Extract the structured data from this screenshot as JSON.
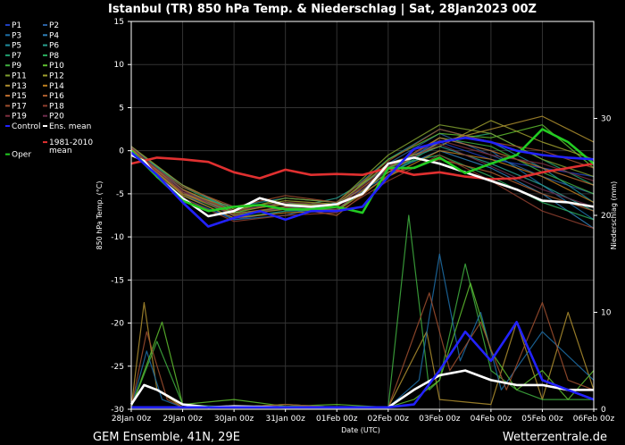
{
  "chart_data": {
    "type": "line",
    "title": "Istanbul  (TR)  850 hPa Temp. & Niederschlag | Sat, 28Jan2023 00Z",
    "xlabel": "Date (UTC)",
    "ylabel_left": "850 hPa Temp. (°C)",
    "ylabel_right": "Niederschlag (mm)",
    "footer_left": "GEM Ensemble, 41N, 29E",
    "footer_right": "Wetterzentrale.de",
    "y_left_range": [
      -30,
      15
    ],
    "y_right_range": [
      0,
      40
    ],
    "y_left_ticks": [
      "15",
      "10",
      "5",
      "0",
      "-5",
      "-10",
      "-15",
      "-20",
      "-25",
      "-30"
    ],
    "y_right_ticks": [
      "30",
      "20",
      "10",
      "0"
    ],
    "x_ticks": [
      "28Jan 00z",
      "29Jan 00z",
      "30Jan 00z",
      "31Jan 00z",
      "01Feb 00z",
      "02Feb 00z",
      "03Feb 00z",
      "04Feb 00z",
      "05Feb 00z",
      "06Feb 00z"
    ],
    "grid": true,
    "legend_position": "left",
    "legend": [
      {
        "label": "P1",
        "color": "#1f3fbf"
      },
      {
        "label": "P2",
        "color": "#2a5fa0"
      },
      {
        "label": "P3",
        "color": "#1d6fa8"
      },
      {
        "label": "P4",
        "color": "#2f7fb8"
      },
      {
        "label": "P5",
        "color": "#1f8f9f"
      },
      {
        "label": "P6",
        "color": "#2a9f8f"
      },
      {
        "label": "P7",
        "color": "#1f9f6f"
      },
      {
        "label": "P8",
        "color": "#2aaf5f"
      },
      {
        "label": "P9",
        "color": "#3faf3f"
      },
      {
        "label": "P10",
        "color": "#5fbf2f"
      },
      {
        "label": "P11",
        "color": "#7f9f2f"
      },
      {
        "label": "P12",
        "color": "#9f9f2f"
      },
      {
        "label": "P13",
        "color": "#af8f2f"
      },
      {
        "label": "P14",
        "color": "#bf7f1f"
      },
      {
        "label": "P15",
        "color": "#bf6f2f"
      },
      {
        "label": "P16",
        "color": "#af5f2f"
      },
      {
        "label": "P17",
        "color": "#9f4f2f"
      },
      {
        "label": "P18",
        "color": "#8f3f2f"
      },
      {
        "label": "P19",
        "color": "#7f2f3f"
      },
      {
        "label": "P20",
        "color": "#6f2f4f"
      },
      {
        "label": "Control",
        "color": "#2222ff"
      },
      {
        "label": "Ens. mean",
        "color": "#ffffff"
      },
      {
        "label": "1981-2010 mean",
        "color": "#e03030"
      },
      {
        "label": "Oper",
        "color": "#22cc22"
      }
    ],
    "series": [
      {
        "name": "1981-2010 mean",
        "axis": "left",
        "color": "#e03030",
        "x": [
          0,
          0.5,
          1,
          1.5,
          2,
          2.5,
          3,
          3.5,
          4,
          4.5,
          5,
          5.5,
          6,
          6.5,
          7,
          7.5,
          8,
          8.5,
          9
        ],
        "y": [
          -1.5,
          -0.8,
          -1,
          -1.3,
          -2.5,
          -3.2,
          -2.2,
          -2.8,
          -2.7,
          -2.8,
          -2,
          -2.8,
          -2.5,
          -3,
          -3.3,
          -3.2,
          -2.5,
          -2,
          -1.5
        ]
      },
      {
        "name": "Ens. mean",
        "axis": "left",
        "color": "#ffffff",
        "x": [
          0,
          0.25,
          0.5,
          1,
          1.5,
          2,
          2.5,
          3,
          3.5,
          4,
          4.5,
          5,
          5.5,
          6,
          6.5,
          7,
          7.5,
          8,
          8.5,
          9
        ],
        "y": [
          -0.5,
          -1.2,
          -3,
          -5.5,
          -7.6,
          -7,
          -5.5,
          -6.3,
          -6.5,
          -6.2,
          -5,
          -1.5,
          -0.8,
          -1.5,
          -2.5,
          -3.5,
          -4.5,
          -5.8,
          -6,
          -6.5
        ]
      },
      {
        "name": "Oper",
        "axis": "left",
        "color": "#22cc22",
        "x": [
          0,
          0.5,
          1,
          1.5,
          2,
          2.5,
          3,
          3.5,
          4,
          4.5,
          5,
          5.5,
          6,
          6.5,
          7,
          7.5,
          8,
          8.5,
          9
        ],
        "y": [
          0,
          -3,
          -5.8,
          -7,
          -6.5,
          -6.3,
          -6.8,
          -6.8,
          -6.5,
          -7.2,
          -2,
          -2,
          -0.8,
          -2.6,
          -1.5,
          -0.5,
          2.5,
          1,
          -1.5
        ]
      },
      {
        "name": "Control",
        "axis": "left",
        "color": "#2222ff",
        "x": [
          0,
          0.5,
          1,
          1.5,
          2,
          2.5,
          3,
          3.5,
          4,
          4.5,
          5,
          5.5,
          6,
          6.5,
          7,
          7.5,
          8,
          8.5,
          9
        ],
        "y": [
          -0.2,
          -2.8,
          -6,
          -8.8,
          -7.8,
          -7,
          -8,
          -7,
          -7,
          -6.5,
          -3,
          0.2,
          1,
          1.5,
          1,
          0,
          -0.5,
          -0.8,
          -1
        ]
      },
      {
        "name": "P1",
        "axis": "left",
        "color": "#1f3fbf",
        "x": [
          0,
          1,
          2,
          3,
          4,
          5,
          6,
          7,
          8,
          9
        ],
        "y": [
          0,
          -5,
          -8,
          -7,
          -7,
          -2,
          1,
          -1,
          -2,
          -3
        ]
      },
      {
        "name": "P2",
        "axis": "left",
        "color": "#2a5fa0",
        "x": [
          0,
          1,
          2,
          3,
          4,
          5,
          6,
          7,
          8,
          9
        ],
        "y": [
          0.5,
          -4.5,
          -7.5,
          -6.5,
          -6.5,
          -1.5,
          2,
          -0.5,
          -3,
          -5
        ]
      },
      {
        "name": "P3",
        "axis": "left",
        "color": "#1d6fa8",
        "x": [
          0,
          1,
          2,
          3,
          4,
          5,
          6,
          7,
          8,
          9
        ],
        "y": [
          0,
          -5.5,
          -8,
          -7.5,
          -6,
          -3,
          1.5,
          0,
          -4,
          -8
        ]
      },
      {
        "name": "P4",
        "axis": "left",
        "color": "#2f7fb8",
        "x": [
          0,
          1,
          2,
          3,
          4,
          5,
          6,
          7,
          8,
          9
        ],
        "y": [
          0.3,
          -4,
          -7,
          -6,
          -7,
          -2.5,
          0,
          -2,
          -5,
          -9
        ]
      },
      {
        "name": "P5",
        "axis": "left",
        "color": "#1f8f9f",
        "x": [
          0,
          1,
          2,
          3,
          4,
          5,
          6,
          7,
          8,
          9
        ],
        "y": [
          0,
          -5,
          -6.5,
          -5.5,
          -6,
          -1,
          2.5,
          1,
          -2,
          -6
        ]
      },
      {
        "name": "P6",
        "axis": "left",
        "color": "#2a9f8f",
        "x": [
          0,
          1,
          2,
          3,
          4,
          5,
          6,
          7,
          8,
          9
        ],
        "y": [
          0.2,
          -4.8,
          -7.2,
          -6.8,
          -5.5,
          -2,
          0.5,
          -1.5,
          -4,
          -7
        ]
      },
      {
        "name": "P7",
        "axis": "left",
        "color": "#1f9f6f",
        "x": [
          0,
          1,
          2,
          3,
          4,
          5,
          6,
          7,
          8,
          9
        ],
        "y": [
          0,
          -5.2,
          -7.8,
          -7,
          -6.8,
          -3,
          1,
          2,
          -1,
          -4
        ]
      },
      {
        "name": "P8",
        "axis": "left",
        "color": "#2aaf5f",
        "x": [
          0,
          1,
          2,
          3,
          4,
          5,
          6,
          7,
          8,
          9
        ],
        "y": [
          0.4,
          -4.2,
          -7,
          -6.2,
          -6.2,
          -1.8,
          -0.5,
          -3,
          -6,
          -8
        ]
      },
      {
        "name": "P9",
        "axis": "left",
        "color": "#3faf3f",
        "x": [
          0,
          1,
          2,
          3,
          4,
          5,
          6,
          7,
          8,
          9
        ],
        "y": [
          0,
          -5,
          -7.5,
          -6.5,
          -7,
          -2.2,
          1.5,
          0.5,
          -2.5,
          -5
        ]
      },
      {
        "name": "P10",
        "axis": "left",
        "color": "#5fbf2f",
        "x": [
          0,
          1,
          2,
          3,
          4,
          5,
          6,
          7,
          8,
          9
        ],
        "y": [
          0.1,
          -4.5,
          -7.2,
          -6,
          -6.5,
          -1,
          2,
          1.5,
          3,
          -2
        ]
      },
      {
        "name": "P11",
        "axis": "left",
        "color": "#7f9f2f",
        "x": [
          0,
          1,
          2,
          3,
          4,
          5,
          6,
          7,
          8,
          9
        ],
        "y": [
          0,
          -5,
          -7,
          -5.5,
          -6,
          -0.5,
          3,
          2,
          -1,
          -3
        ]
      },
      {
        "name": "P12",
        "axis": "left",
        "color": "#9f9f2f",
        "x": [
          0,
          1,
          2,
          3,
          4,
          5,
          6,
          7,
          8,
          9
        ],
        "y": [
          0.5,
          -4,
          -6.8,
          -5.8,
          -6.2,
          -1.5,
          0.5,
          3.5,
          1,
          -1
        ]
      },
      {
        "name": "P13",
        "axis": "left",
        "color": "#af8f2f",
        "x": [
          0,
          1,
          2,
          3,
          4,
          5,
          6,
          7,
          8,
          9
        ],
        "y": [
          0,
          -4.8,
          -7.5,
          -6.8,
          -6.8,
          -2.5,
          1,
          2.5,
          4,
          1
        ]
      },
      {
        "name": "P14",
        "axis": "left",
        "color": "#bf7f1f",
        "x": [
          0,
          1,
          2,
          3,
          4,
          5,
          6,
          7,
          8,
          9
        ],
        "y": [
          0.2,
          -5.2,
          -7.8,
          -7.2,
          -7,
          -3,
          0,
          -1,
          -3,
          -6
        ]
      },
      {
        "name": "P15",
        "axis": "left",
        "color": "#bf6f2f",
        "x": [
          0,
          1,
          2,
          3,
          4,
          5,
          6,
          7,
          8,
          9
        ],
        "y": [
          0,
          -4.5,
          -7,
          -6.2,
          -6.5,
          -2,
          1.5,
          0,
          -2,
          -4
        ]
      },
      {
        "name": "P16",
        "axis": "left",
        "color": "#af5f2f",
        "x": [
          0,
          1,
          2,
          3,
          4,
          5,
          6,
          7,
          8,
          9
        ],
        "y": [
          0.3,
          -5,
          -7.3,
          -6.5,
          -7.5,
          -2.8,
          -1,
          -2.5,
          -5,
          -7
        ]
      },
      {
        "name": "P17",
        "axis": "left",
        "color": "#9f4f2f",
        "x": [
          0,
          1,
          2,
          3,
          4,
          5,
          6,
          7,
          8,
          9
        ],
        "y": [
          0,
          -4.2,
          -6.5,
          -5.2,
          -6,
          -1.2,
          2.5,
          1,
          0,
          -2
        ]
      },
      {
        "name": "P18",
        "axis": "left",
        "color": "#8f3f2f",
        "x": [
          0,
          1,
          2,
          3,
          4,
          5,
          6,
          7,
          8,
          9
        ],
        "y": [
          0.1,
          -5.5,
          -8.2,
          -7.5,
          -7.2,
          -3.5,
          -0.5,
          -3.5,
          -7,
          -9
        ]
      },
      {
        "name": "P19",
        "axis": "left",
        "color": "#7f2f3f",
        "x": [
          0,
          1,
          2,
          3,
          4,
          5,
          6,
          7,
          8,
          9
        ],
        "y": [
          0,
          -4.8,
          -7,
          -6,
          -6.3,
          -1.8,
          1.2,
          -0.5,
          -1.5,
          -3.5
        ]
      },
      {
        "name": "P20",
        "axis": "left",
        "color": "#6f2f4f",
        "x": [
          0,
          1,
          2,
          3,
          4,
          5,
          6,
          7,
          8,
          9
        ],
        "y": [
          0.4,
          -4.6,
          -7.6,
          -6.6,
          -6.8,
          -2.2,
          0.8,
          -1.8,
          -4.5,
          -6.5
        ]
      },
      {
        "name": "Ens. mean",
        "axis": "right",
        "color": "#ffffff",
        "x": [
          0,
          0.25,
          0.5,
          1,
          1.5,
          2,
          3,
          4,
          5,
          5.5,
          6,
          6.5,
          7,
          7.5,
          8,
          8.5,
          9
        ],
        "y": [
          0.5,
          2.5,
          2,
          0.5,
          0.2,
          0.3,
          0.2,
          0.2,
          0.2,
          2,
          3.5,
          4,
          3,
          2.5,
          2.5,
          2,
          2
        ]
      },
      {
        "name": "P13",
        "axis": "right",
        "color": "#af8f2f",
        "x": [
          0,
          0.25,
          0.5,
          1,
          2,
          3,
          4,
          5,
          5.75,
          6,
          7,
          7.5,
          8,
          8.5,
          9
        ],
        "y": [
          0.2,
          11,
          2,
          0.2,
          0.2,
          0.5,
          0.2,
          0.2,
          8,
          1,
          0.5,
          9,
          1,
          10,
          2
        ]
      },
      {
        "name": "P9",
        "axis": "right",
        "color": "#3faf3f",
        "x": [
          0,
          0.5,
          1,
          2,
          3,
          4,
          5,
          5.4,
          5.8,
          6,
          6.5,
          7,
          7.5,
          8,
          9
        ],
        "y": [
          0.2,
          7,
          0.5,
          0.2,
          0.5,
          0.2,
          0.2,
          20,
          2,
          3,
          15,
          4,
          2,
          1,
          1
        ]
      },
      {
        "name": "Control",
        "axis": "right",
        "color": "#2222ff",
        "x": [
          0,
          1,
          2,
          3,
          4,
          5,
          5.5,
          6,
          6.5,
          7,
          7.5,
          8,
          8.5,
          9
        ],
        "y": [
          0.2,
          0.2,
          0.2,
          0.2,
          0.2,
          0.2,
          0.5,
          4,
          8,
          5,
          9,
          3,
          2,
          1
        ]
      },
      {
        "name": "P3",
        "axis": "right",
        "color": "#1d6fa8",
        "x": [
          0,
          0.3,
          0.6,
          1,
          2,
          3,
          4,
          5,
          5.6,
          6,
          6.4,
          6.8,
          7.2,
          8,
          9
        ],
        "y": [
          0.2,
          6,
          1,
          0.2,
          0.2,
          0.2,
          0.2,
          0.2,
          3,
          16,
          5,
          10,
          2,
          8,
          3
        ]
      },
      {
        "name": "P10",
        "axis": "right",
        "color": "#5fbf2f",
        "x": [
          0,
          0.6,
          1,
          2,
          3,
          4,
          5,
          5.5,
          6,
          6.6,
          7,
          7.5,
          8,
          8.5,
          9
        ],
        "y": [
          0.2,
          9,
          0.5,
          1,
          0.3,
          0.5,
          0.2,
          1,
          3,
          13,
          6,
          2,
          4,
          1,
          4
        ]
      },
      {
        "name": "P17",
        "axis": "right",
        "color": "#9f4f2f",
        "x": [
          0,
          0.3,
          0.7,
          1,
          2,
          3,
          4,
          5,
          5.8,
          6.2,
          6.8,
          7.3,
          8,
          8.5,
          9
        ],
        "y": [
          0.2,
          8,
          1,
          0.2,
          0.2,
          0.5,
          0.2,
          0.2,
          12,
          4,
          9,
          2,
          11,
          3,
          2
        ]
      }
    ]
  }
}
